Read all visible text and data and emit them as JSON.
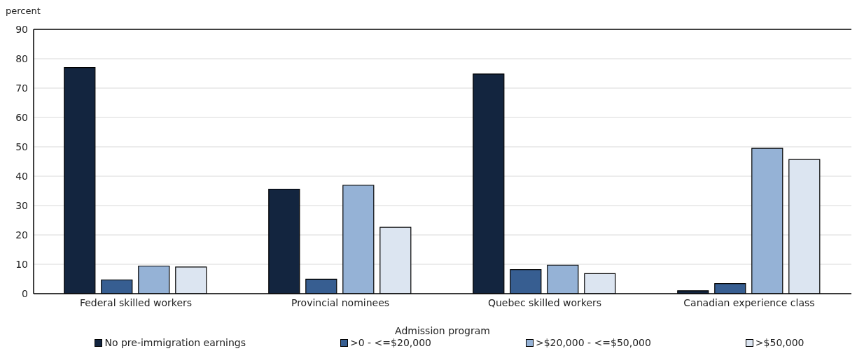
{
  "chart_data": {
    "type": "bar",
    "ylabel": "percent",
    "xlabel": "Admission program",
    "categories": [
      "Federal skilled workers",
      "Provincial nominees",
      "Quebec skilled workers",
      "Canadian experience class"
    ],
    "series": [
      {
        "name": "No pre-immigration earnings",
        "color": "#13253f",
        "values": [
          77.0,
          35.6,
          74.8,
          1.0
        ]
      },
      {
        "name": ">0 - <=$20,000",
        "color": "#375e91",
        "values": [
          4.7,
          4.9,
          8.2,
          3.4
        ]
      },
      {
        "name": ">$20,000 - <=$50,000",
        "color": "#95b2d6",
        "values": [
          9.4,
          36.9,
          9.7,
          49.5
        ]
      },
      {
        "name": ">$50,000",
        "color": "#dce5f1",
        "values": [
          9.1,
          22.6,
          6.8,
          45.7
        ]
      }
    ],
    "ylim": [
      0,
      90
    ],
    "yticks": [
      0,
      10,
      20,
      30,
      40,
      50,
      60,
      70,
      80,
      90
    ],
    "grid": "y",
    "legend": "bottom"
  }
}
